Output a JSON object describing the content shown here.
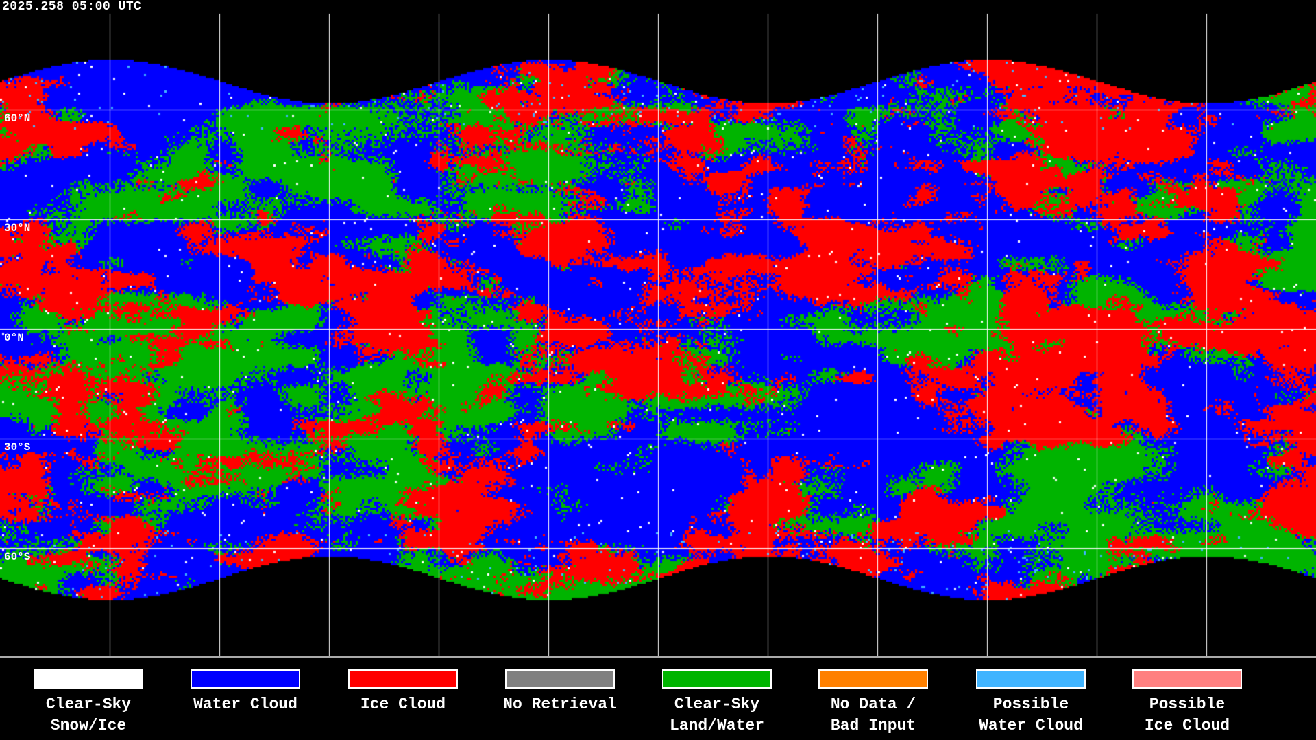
{
  "title": "2025.258 05:00 UTC",
  "map": {
    "projection": "equirectangular",
    "grid_interval_degrees": 30,
    "lat_labels": [
      "60°N",
      "30°N",
      "0°N",
      "30°S",
      "60°S"
    ],
    "background_color": "#000000",
    "coastline_color": "#ffffff"
  },
  "legend": [
    {
      "label_line1": "Clear-Sky",
      "label_line2": "Snow/Ice",
      "color": "#ffffff"
    },
    {
      "label_line1": "Water Cloud",
      "label_line2": "",
      "color": "#0000ff"
    },
    {
      "label_line1": "Ice Cloud",
      "label_line2": "",
      "color": "#ff0000"
    },
    {
      "label_line1": "No Retrieval",
      "label_line2": "",
      "color": "#808080"
    },
    {
      "label_line1": "Clear-Sky",
      "label_line2": "Land/Water",
      "color": "#00b400"
    },
    {
      "label_line1": "No Data /",
      "label_line2": "Bad Input",
      "color": "#ff8000"
    },
    {
      "label_line1": "Possible",
      "label_line2": "Water Cloud",
      "color": "#40b4ff"
    },
    {
      "label_line1": "Possible",
      "label_line2": "Ice Cloud",
      "color": "#ff8080"
    }
  ]
}
